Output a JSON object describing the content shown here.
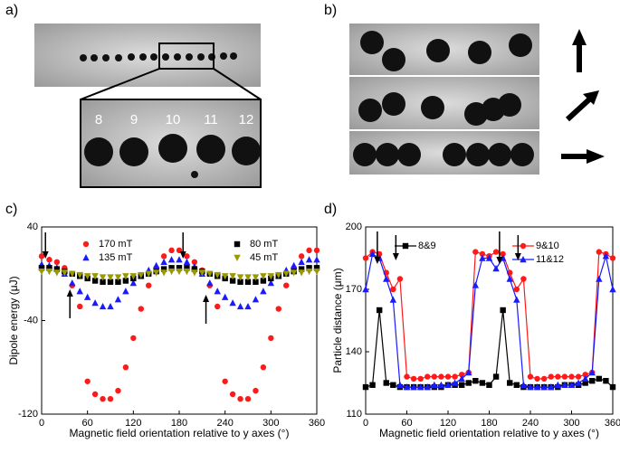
{
  "panels": {
    "a": {
      "label": "a)",
      "particle_numbers": [
        "8",
        "9",
        "10",
        "11",
        "12"
      ]
    },
    "b": {
      "label": "b)"
    }
  },
  "chart_data": [
    {
      "type": "scatter",
      "panel_label": "c)",
      "xlabel": "Magnetic field orientation relative to y axes (°)",
      "ylabel": "Dipole energy (μJ)",
      "x": [
        0,
        10,
        20,
        30,
        40,
        50,
        60,
        70,
        80,
        90,
        100,
        110,
        120,
        130,
        140,
        150,
        160,
        170,
        180,
        190,
        200,
        210,
        220,
        230,
        240,
        250,
        260,
        270,
        280,
        290,
        300,
        310,
        320,
        330,
        340,
        350,
        360
      ],
      "xlim": [
        0,
        360
      ],
      "xticks": [
        0,
        60,
        120,
        180,
        240,
        300,
        360
      ],
      "ylim": [
        -120,
        40
      ],
      "yticks": [
        -120,
        -40,
        40
      ],
      "connect": false,
      "series": [
        {
          "name": "170 mT",
          "color": "#ff1a1a",
          "marker": "circle",
          "values": [
            15,
            12,
            10,
            5,
            -10,
            -28,
            -92,
            -103,
            -107,
            -107,
            -100,
            -80,
            -55,
            -30,
            -10,
            5,
            15,
            20,
            20,
            15,
            10,
            3,
            -10,
            -28,
            -92,
            -103,
            -107,
            -107,
            -100,
            -80,
            -55,
            -30,
            -10,
            5,
            15,
            20,
            20
          ]
        },
        {
          "name": "135 mT",
          "color": "#1a1aff",
          "marker": "triangle",
          "values": [
            8,
            7,
            5,
            0,
            -8,
            -15,
            -20,
            -25,
            -28,
            -28,
            -22,
            -15,
            -8,
            -2,
            3,
            7,
            10,
            12,
            12,
            10,
            6,
            0,
            -8,
            -15,
            -20,
            -25,
            -28,
            -28,
            -22,
            -15,
            -8,
            -2,
            3,
            7,
            10,
            12,
            12
          ]
        },
        {
          "name": "80 mT",
          "color": "#000000",
          "marker": "square",
          "values": [
            5,
            5,
            4,
            2,
            0,
            -2,
            -4,
            -6,
            -7,
            -7,
            -7,
            -6,
            -4,
            -2,
            0,
            2,
            4,
            5,
            5,
            5,
            4,
            2,
            0,
            -2,
            -4,
            -6,
            -7,
            -7,
            -7,
            -6,
            -4,
            -2,
            0,
            2,
            4,
            5,
            5
          ]
        },
        {
          "name": "45 mT",
          "color": "#999900",
          "marker": "triangle-down",
          "values": [
            2,
            2,
            1,
            1,
            0,
            -1,
            -2,
            -2,
            -3,
            -3,
            -3,
            -2,
            -2,
            -1,
            0,
            1,
            1,
            2,
            2,
            2,
            1,
            1,
            0,
            -1,
            -2,
            -2,
            -3,
            -3,
            -3,
            -2,
            -2,
            -1,
            0,
            1,
            1,
            2,
            2
          ]
        }
      ]
    },
    {
      "type": "line",
      "panel_label": "d)",
      "xlabel": "Magnetic field orientation relative to y axes (°)",
      "ylabel": "Particle distance (μm)",
      "x": [
        0,
        10,
        20,
        30,
        40,
        50,
        60,
        70,
        80,
        90,
        100,
        110,
        120,
        130,
        140,
        150,
        160,
        170,
        180,
        190,
        200,
        210,
        220,
        230,
        240,
        250,
        260,
        270,
        280,
        290,
        300,
        310,
        320,
        330,
        340,
        350,
        360
      ],
      "xlim": [
        0,
        360
      ],
      "xticks": [
        0,
        60,
        120,
        180,
        240,
        300,
        360
      ],
      "ylim": [
        110,
        200
      ],
      "yticks": [
        110,
        140,
        170,
        200
      ],
      "connect": true,
      "series": [
        {
          "name": "8&9",
          "color": "#000000",
          "marker": "square",
          "values": [
            123,
            124,
            160,
            125,
            124,
            123,
            123,
            123,
            123,
            123,
            123,
            123,
            124,
            124,
            124,
            125,
            126,
            125,
            124,
            128,
            160,
            125,
            124,
            123,
            123,
            123,
            123,
            123,
            123,
            124,
            124,
            124,
            125,
            126,
            127,
            126,
            123
          ]
        },
        {
          "name": "9&10",
          "color": "#ff1a1a",
          "marker": "circle",
          "values": [
            185,
            188,
            187,
            178,
            170,
            175,
            128,
            127,
            127,
            128,
            128,
            128,
            128,
            128,
            129,
            130,
            188,
            187,
            186,
            188,
            187,
            178,
            170,
            175,
            128,
            127,
            127,
            128,
            128,
            128,
            128,
            128,
            129,
            130,
            188,
            187,
            185
          ]
        },
        {
          "name": "11&12",
          "color": "#1a1aff",
          "marker": "triangle",
          "values": [
            170,
            187,
            185,
            175,
            165,
            124,
            123,
            123,
            123,
            123,
            124,
            124,
            124,
            125,
            127,
            130,
            172,
            185,
            185,
            180,
            185,
            175,
            165,
            124,
            123,
            123,
            123,
            123,
            124,
            124,
            124,
            125,
            127,
            130,
            175,
            186,
            170
          ]
        }
      ]
    }
  ]
}
